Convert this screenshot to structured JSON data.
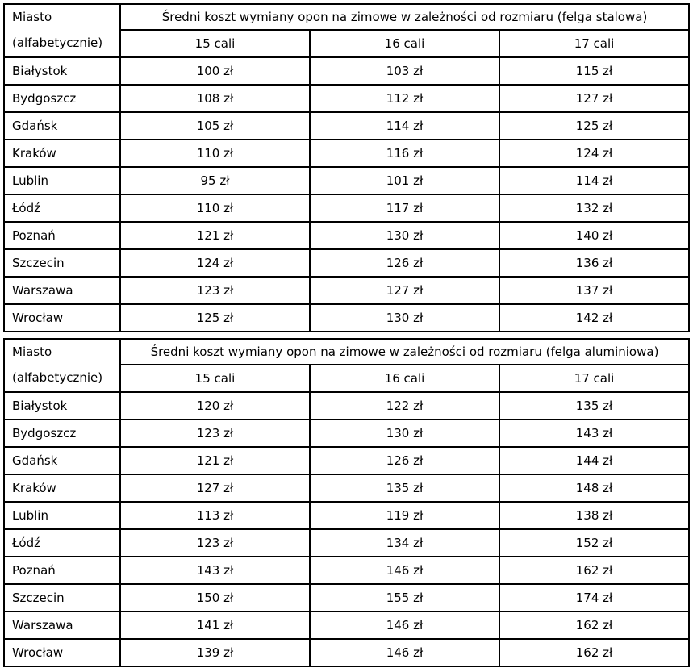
{
  "colors": {
    "border": "#000000",
    "text": "#000000",
    "background": "#ffffff"
  },
  "tables": [
    {
      "city_header_line1": "Miasto",
      "city_header_line2": "(alfabetycznie)",
      "title": "Średni koszt wymiany opon na zimowe w zależności od rozmiaru (felga stalowa)",
      "size_headers": [
        "15 cali",
        "16 cali",
        "17 cali"
      ],
      "rows": [
        {
          "city": "Białystok",
          "values": [
            "100 zł",
            "103 zł",
            "115 zł"
          ]
        },
        {
          "city": "Bydgoszcz",
          "values": [
            "108 zł",
            "112 zł",
            "127 zł"
          ]
        },
        {
          "city": "Gdańsk",
          "values": [
            "105 zł",
            "114 zł",
            "125 zł"
          ]
        },
        {
          "city": "Kraków",
          "values": [
            "110 zł",
            "116 zł",
            "124 zł"
          ]
        },
        {
          "city": "Lublin",
          "values": [
            "95 zł",
            "101 zł",
            "114 zł"
          ]
        },
        {
          "city": "Łódź",
          "values": [
            "110 zł",
            "117 zł",
            "132 zł"
          ]
        },
        {
          "city": "Poznań",
          "values": [
            "121 zł",
            "130 zł",
            "140 zł"
          ]
        },
        {
          "city": "Szczecin",
          "values": [
            "124 zł",
            "126 zł",
            "136 zł"
          ]
        },
        {
          "city": "Warszawa",
          "values": [
            "123 zł",
            "127 zł",
            "137 zł"
          ]
        },
        {
          "city": "Wrocław",
          "values": [
            "125 zł",
            "130 zł",
            "142 zł"
          ]
        }
      ]
    },
    {
      "city_header_line1": "Miasto",
      "city_header_line2": "(alfabetycznie)",
      "title": "Średni koszt wymiany opon na zimowe w zależności od rozmiaru (felga aluminiowa)",
      "size_headers": [
        "15 cali",
        "16 cali",
        "17 cali"
      ],
      "rows": [
        {
          "city": "Białystok",
          "values": [
            "120 zł",
            "122 zł",
            "135 zł"
          ]
        },
        {
          "city": "Bydgoszcz",
          "values": [
            "123 zł",
            "130 zł",
            "143 zł"
          ]
        },
        {
          "city": "Gdańsk",
          "values": [
            "121 zł",
            "126 zł",
            "144 zł"
          ]
        },
        {
          "city": "Kraków",
          "values": [
            "127 zł",
            "135 zł",
            "148 zł"
          ]
        },
        {
          "city": "Lublin",
          "values": [
            "113 zł",
            "119 zł",
            "138 zł"
          ]
        },
        {
          "city": "Łódź",
          "values": [
            "123 zł",
            "134 zł",
            "152 zł"
          ]
        },
        {
          "city": "Poznań",
          "values": [
            "143 zł",
            "146 zł",
            "162 zł"
          ]
        },
        {
          "city": "Szczecin",
          "values": [
            "150 zł",
            "155 zł",
            "174 zł"
          ]
        },
        {
          "city": "Warszawa",
          "values": [
            "141 zł",
            "146 zł",
            "162 zł"
          ]
        },
        {
          "city": "Wrocław",
          "values": [
            "139 zł",
            "146 zł",
            "162 zł"
          ]
        }
      ]
    }
  ]
}
